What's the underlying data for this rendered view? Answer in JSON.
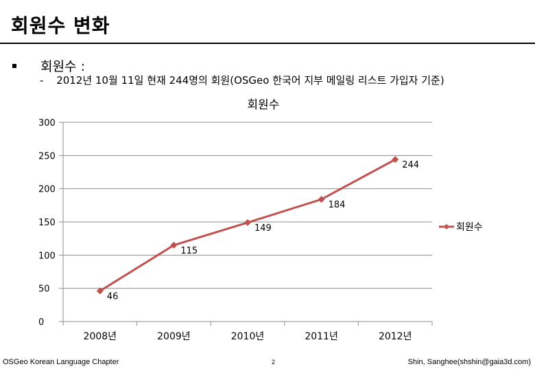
{
  "slide": {
    "title": "회원수 변화",
    "bullet": "회원수 :",
    "sub_bullet_dash": "-",
    "sub_bullet": "2012년 10월 11일 현재 244명의 회원(OSGeo 한국어 지부 메일링 리스트 가입자 기준)",
    "footer_left": "OSGeo Korean Language Chapter",
    "page_number": "2",
    "footer_right": "Shin, Sanghee(shshin@gaia3d.com)"
  },
  "chart_data": {
    "type": "line",
    "title": "회원수",
    "categories": [
      "2008년",
      "2009년",
      "2010년",
      "2011년",
      "2012년"
    ],
    "series": [
      {
        "name": "회원수",
        "values": [
          46,
          115,
          149,
          184,
          244
        ]
      }
    ],
    "ylim": [
      0,
      300
    ],
    "yticks": [
      "0",
      "50",
      "100",
      "150",
      "200",
      "250",
      "300"
    ],
    "xlabel": "",
    "ylabel": "",
    "grid": true,
    "legend_position": "right",
    "series_color": "#c0504d",
    "data_labels": [
      "46",
      "115",
      "149",
      "184",
      "244"
    ]
  }
}
